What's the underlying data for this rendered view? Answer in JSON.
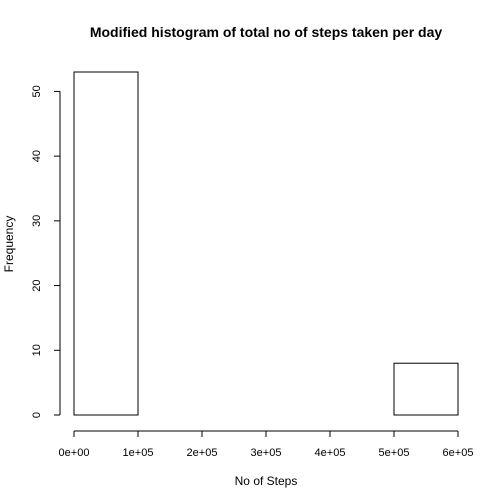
{
  "chart_data": {
    "type": "bar",
    "title": "Modified histogram of total no of steps taken per day",
    "xlabel": "No of Steps",
    "ylabel": "Frequency",
    "bins": [
      {
        "from": 0,
        "to": 100000,
        "count": 53
      },
      {
        "from": 100000,
        "to": 200000,
        "count": 0
      },
      {
        "from": 200000,
        "to": 300000,
        "count": 0
      },
      {
        "from": 300000,
        "to": 400000,
        "count": 0
      },
      {
        "from": 400000,
        "to": 500000,
        "count": 0
      },
      {
        "from": 500000,
        "to": 600000,
        "count": 8
      }
    ],
    "xlim": [
      0,
      600000
    ],
    "ylim": [
      0,
      53
    ],
    "x_ticks": [
      0,
      100000,
      200000,
      300000,
      400000,
      500000,
      600000
    ],
    "x_tick_labels": [
      "0e+00",
      "1e+05",
      "2e+05",
      "3e+05",
      "4e+05",
      "5e+05",
      "6e+05"
    ],
    "y_ticks": [
      0,
      10,
      20,
      30,
      40,
      50
    ],
    "y_tick_labels": [
      "0",
      "10",
      "20",
      "30",
      "40",
      "50"
    ],
    "grid": false,
    "legend": "none"
  }
}
